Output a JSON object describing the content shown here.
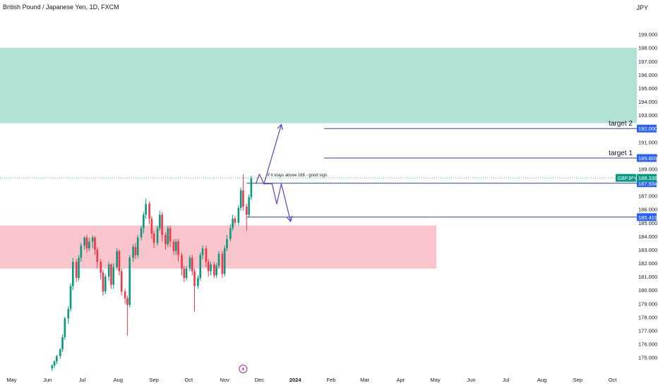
{
  "header": {
    "title": "British Pound / Japanese Yen, 1D, FXCM",
    "currency": "JPY"
  },
  "chart_data": {
    "type": "candlestick",
    "symbol": "GBPJPY",
    "ylim": [
      174.3,
      200.5
    ],
    "y_ticks": [
      175,
      176,
      177,
      178,
      179,
      180,
      181,
      182,
      183,
      184,
      185,
      186,
      187,
      188,
      189,
      190,
      191,
      192,
      193,
      194,
      195,
      196,
      197,
      198,
      199
    ],
    "y_tick_labels": [
      "175.000",
      "176.000",
      "177.000",
      "178.000",
      "179.000",
      "180.000",
      "181.000",
      "182.000",
      "183.000",
      "184.000",
      "185.000",
      "186.000",
      "187.000",
      "188.000",
      "189.000",
      "190.000",
      "191.000",
      "192.000",
      "193.000",
      "194.000",
      "195.000",
      "196.000",
      "197.000",
      "198.000",
      "199.000"
    ],
    "x_axis": {
      "labels": [
        "May",
        "Jun",
        "Jul",
        "Aug",
        "Sep",
        "Oct",
        "Nov",
        "Dec",
        "2024",
        "Feb",
        "Mar",
        "Apr",
        "May",
        "Jun",
        "Jul",
        "Aug",
        "Sep",
        "Oct"
      ],
      "dates": [
        "2023-05-01",
        "2023-06-01",
        "2023-07-01",
        "2023-08-01",
        "2023-09-01",
        "2023-10-01",
        "2023-11-01",
        "2023-12-01",
        "2024-01-01",
        "2024-02-01",
        "2024-03-01",
        "2024-04-01",
        "2024-05-01",
        "2024-06-01",
        "2024-07-01",
        "2024-08-01",
        "2024-09-01",
        "2024-10-01"
      ],
      "range": [
        "2023-04-21",
        "2024-10-22"
      ]
    },
    "candles": [
      [
        "2023-06-05",
        174.2,
        174.4,
        174.0,
        174.5
      ],
      [
        "2023-06-07",
        174.4,
        174.7,
        174.2,
        174.8
      ],
      [
        "2023-06-09",
        174.7,
        175.1,
        174.5,
        175.2
      ],
      [
        "2023-06-12",
        175.1,
        175.6,
        174.9,
        175.7
      ],
      [
        "2023-06-14",
        175.6,
        176.5,
        175.4,
        176.7
      ],
      [
        "2023-06-16",
        176.5,
        177.9,
        176.3,
        178.0
      ],
      [
        "2023-06-19",
        177.9,
        178.6,
        177.5,
        178.8
      ],
      [
        "2023-06-21",
        178.6,
        180.3,
        178.4,
        180.5
      ],
      [
        "2023-06-23",
        180.3,
        182.1,
        180.0,
        182.4
      ],
      [
        "2023-06-26",
        182.1,
        180.9,
        180.6,
        182.3
      ],
      [
        "2023-06-28",
        180.9,
        182.4,
        180.7,
        182.6
      ],
      [
        "2023-06-30",
        182.4,
        183.3,
        182.1,
        183.5
      ],
      [
        "2023-07-03",
        183.3,
        183.9,
        183.0,
        184.0
      ],
      [
        "2023-07-05",
        183.9,
        183.1,
        182.8,
        184.1
      ],
      [
        "2023-07-07",
        183.1,
        183.6,
        182.9,
        183.9
      ],
      [
        "2023-07-10",
        183.6,
        183.9,
        183.1,
        184.1
      ],
      [
        "2023-07-12",
        183.9,
        183.0,
        182.6,
        184.0
      ],
      [
        "2023-07-14",
        183.0,
        182.1,
        181.6,
        183.2
      ],
      [
        "2023-07-17",
        182.1,
        181.3,
        180.8,
        182.3
      ],
      [
        "2023-07-19",
        181.3,
        179.9,
        179.6,
        181.5
      ],
      [
        "2023-07-21",
        179.9,
        181.0,
        179.7,
        181.2
      ],
      [
        "2023-07-24",
        181.0,
        181.9,
        180.7,
        182.1
      ],
      [
        "2023-07-26",
        181.9,
        180.4,
        180.1,
        182.0
      ],
      [
        "2023-07-28",
        180.4,
        181.7,
        180.1,
        182.0
      ],
      [
        "2023-07-31",
        181.7,
        182.9,
        181.5,
        183.1
      ],
      [
        "2023-08-02",
        182.9,
        181.4,
        181.1,
        183.0
      ],
      [
        "2023-08-04",
        181.4,
        179.9,
        179.6,
        181.6
      ],
      [
        "2023-08-07",
        179.9,
        179.4,
        179.0,
        180.1
      ],
      [
        "2023-08-09",
        179.4,
        178.9,
        176.6,
        179.6
      ],
      [
        "2023-08-11",
        178.9,
        182.4,
        178.7,
        182.6
      ],
      [
        "2023-08-14",
        182.4,
        183.2,
        182.1,
        183.4
      ],
      [
        "2023-08-16",
        183.2,
        182.6,
        182.3,
        183.5
      ],
      [
        "2023-08-18",
        182.6,
        183.9,
        182.4,
        184.1
      ],
      [
        "2023-08-21",
        183.9,
        184.6,
        183.7,
        184.8
      ],
      [
        "2023-08-23",
        184.6,
        185.6,
        184.2,
        185.8
      ],
      [
        "2023-08-25",
        185.6,
        186.4,
        185.3,
        186.8
      ],
      [
        "2023-08-28",
        186.4,
        185.3,
        184.9,
        186.6
      ],
      [
        "2023-08-30",
        185.3,
        184.2,
        183.8,
        185.5
      ],
      [
        "2023-09-01",
        184.2,
        183.5,
        183.1,
        184.4
      ],
      [
        "2023-09-04",
        183.5,
        184.6,
        183.3,
        184.8
      ],
      [
        "2023-09-06",
        184.6,
        185.6,
        184.4,
        185.9
      ],
      [
        "2023-09-08",
        185.6,
        184.1,
        183.6,
        185.8
      ],
      [
        "2023-09-11",
        184.1,
        183.4,
        183.0,
        184.3
      ],
      [
        "2023-09-13",
        183.4,
        184.6,
        183.2,
        184.8
      ],
      [
        "2023-09-15",
        184.6,
        183.6,
        183.2,
        184.8
      ],
      [
        "2023-09-18",
        183.6,
        182.9,
        182.6,
        183.8
      ],
      [
        "2023-09-20",
        182.9,
        183.6,
        182.6,
        183.8
      ],
      [
        "2023-09-22",
        183.6,
        182.6,
        182.1,
        183.8
      ],
      [
        "2023-09-25",
        182.6,
        181.6,
        181.1,
        182.8
      ],
      [
        "2023-09-27",
        181.6,
        180.9,
        180.6,
        181.8
      ],
      [
        "2023-09-29",
        180.9,
        181.6,
        180.7,
        181.8
      ],
      [
        "2023-10-02",
        181.6,
        182.4,
        181.4,
        182.6
      ],
      [
        "2023-10-04",
        182.4,
        181.4,
        181.1,
        182.6
      ],
      [
        "2023-10-06",
        181.4,
        180.3,
        178.4,
        181.6
      ],
      [
        "2023-10-09",
        180.3,
        180.9,
        180.1,
        181.1
      ],
      [
        "2023-10-11",
        180.9,
        182.6,
        180.7,
        182.8
      ],
      [
        "2023-10-13",
        182.6,
        183.1,
        182.3,
        183.3
      ],
      [
        "2023-10-16",
        183.1,
        182.1,
        181.7,
        183.3
      ],
      [
        "2023-10-18",
        182.1,
        181.4,
        181.0,
        182.3
      ],
      [
        "2023-10-20",
        181.4,
        181.9,
        181.1,
        182.1
      ],
      [
        "2023-10-23",
        181.9,
        181.1,
        180.9,
        182.1
      ],
      [
        "2023-10-25",
        181.1,
        181.8,
        180.9,
        182.0
      ],
      [
        "2023-10-27",
        181.8,
        182.7,
        181.6,
        182.9
      ],
      [
        "2023-10-30",
        182.7,
        181.2,
        180.9,
        182.9
      ],
      [
        "2023-11-01",
        181.2,
        183.1,
        181.0,
        183.3
      ],
      [
        "2023-11-03",
        183.1,
        183.8,
        182.9,
        184.1
      ],
      [
        "2023-11-06",
        183.8,
        184.6,
        183.6,
        184.9
      ],
      [
        "2023-11-08",
        184.6,
        185.3,
        184.4,
        185.6
      ],
      [
        "2023-11-10",
        185.3,
        185.0,
        184.8,
        185.5
      ],
      [
        "2023-11-13",
        185.0,
        186.1,
        184.8,
        186.3
      ],
      [
        "2023-11-15",
        186.1,
        187.4,
        185.9,
        187.6
      ],
      [
        "2023-11-17",
        187.4,
        186.2,
        185.9,
        188.6
      ],
      [
        "2023-11-20",
        186.2,
        185.6,
        184.4,
        186.4
      ],
      [
        "2023-11-22",
        185.6,
        186.9,
        185.4,
        187.1
      ],
      [
        "2023-11-24",
        186.9,
        188.3,
        186.7,
        188.5
      ]
    ],
    "zones": [
      {
        "name": "supply-zone",
        "from_date": "2023-04-21",
        "to_date": "2024-10-22",
        "low": 192.4,
        "high": 198.0,
        "color": "#b2e1d6"
      },
      {
        "name": "demand-zone",
        "from_date": "2023-04-21",
        "to_date": "2024-05-02",
        "low": 181.6,
        "high": 184.8,
        "color": "#f9c5cc"
      }
    ],
    "levels": [
      {
        "name": "target-2",
        "value": 192.0,
        "label": "target 2",
        "price_label": "192.000",
        "from_date": "2024-01-26"
      },
      {
        "name": "target-1",
        "value": 189.809,
        "label": "target 1",
        "price_label": "189.809",
        "from_date": "2024-01-26"
      },
      {
        "name": "entry-level",
        "value": 187.934,
        "label": "",
        "price_label": "187.934",
        "from_date": "2023-11-20"
      },
      {
        "name": "stop-level",
        "value": 185.419,
        "label": "",
        "price_label": "185.419",
        "from_date": "2023-11-20"
      }
    ],
    "current_price": {
      "symbol": "GBPJPY",
      "value": 188.338,
      "label": "188.338"
    },
    "annotation": {
      "text": "if it stays above 188 - good sign.",
      "date": "2023-12-08",
      "value": 188.35
    },
    "paths": [
      {
        "name": "bull-path",
        "points": [
          [
            "2023-11-28",
            187.9
          ],
          [
            "2023-12-01",
            188.6
          ],
          [
            "2023-12-05",
            187.9
          ],
          [
            "2023-12-20",
            192.3
          ]
        ]
      },
      {
        "name": "bear-path",
        "points": [
          [
            "2023-12-05",
            187.9
          ],
          [
            "2023-12-12",
            187.9
          ],
          [
            "2023-12-16",
            186.4
          ],
          [
            "2023-12-20",
            187.9
          ],
          [
            "2023-12-28",
            185.1
          ]
        ]
      }
    ],
    "colors": {
      "up": "#089981",
      "down": "#f23645",
      "line": "#2e3fcf",
      "arrow": "#5b3fc4",
      "price_badge": "#2962ff",
      "current_badge": "#089981"
    },
    "icons": {
      "event_marker": "lightning-icon"
    }
  }
}
